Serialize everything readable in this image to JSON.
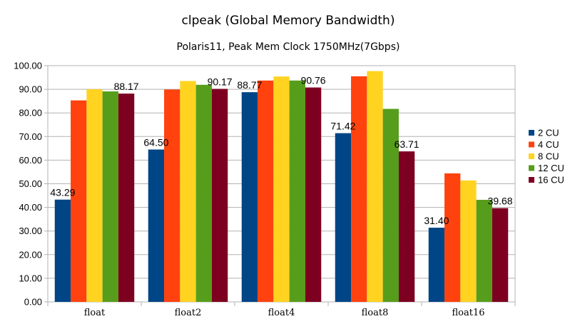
{
  "chart_data": {
    "type": "bar",
    "title": "clpeak (Global Memory Bandwidth)",
    "subtitle": "Polaris11, Peak Mem Clock 1750MHz(7Gbps)",
    "xlabel": "",
    "ylabel": "",
    "categories": [
      "float",
      "float2",
      "float4",
      "float8",
      "float16"
    ],
    "ylim": [
      0,
      100
    ],
    "yticks": [
      "0.00",
      "10.00",
      "20.00",
      "30.00",
      "40.00",
      "50.00",
      "60.00",
      "70.00",
      "80.00",
      "90.00",
      "100.00"
    ],
    "grid": true,
    "legend_position": "right",
    "series": [
      {
        "name": "2 CU",
        "color": "#004586",
        "values": [
          43.29,
          64.5,
          88.77,
          71.42,
          31.4
        ]
      },
      {
        "name": "4 CU",
        "color": "#ff420e",
        "values": [
          85.3,
          89.9,
          93.7,
          95.5,
          54.4
        ]
      },
      {
        "name": "8 CU",
        "color": "#ffd320",
        "values": [
          90.0,
          93.5,
          95.4,
          97.7,
          51.4
        ]
      },
      {
        "name": "12 CU",
        "color": "#579d1c",
        "values": [
          89.1,
          91.9,
          93.7,
          81.7,
          43.2
        ]
      },
      {
        "name": "16 CU",
        "color": "#7e0021",
        "values": [
          88.17,
          90.17,
          90.76,
          63.71,
          39.68
        ]
      }
    ],
    "data_labels": [
      {
        "series": 0,
        "category": 0,
        "text": "43.29"
      },
      {
        "series": 0,
        "category": 1,
        "text": "64.50"
      },
      {
        "series": 0,
        "category": 2,
        "text": "88.77"
      },
      {
        "series": 0,
        "category": 3,
        "text": "71.42"
      },
      {
        "series": 0,
        "category": 4,
        "text": "31.40"
      },
      {
        "series": 4,
        "category": 0,
        "text": "88.17"
      },
      {
        "series": 4,
        "category": 1,
        "text": "90.17"
      },
      {
        "series": 4,
        "category": 2,
        "text": "90.76"
      },
      {
        "series": 4,
        "category": 3,
        "text": "63.71"
      },
      {
        "series": 4,
        "category": 4,
        "text": "39.68"
      }
    ]
  }
}
